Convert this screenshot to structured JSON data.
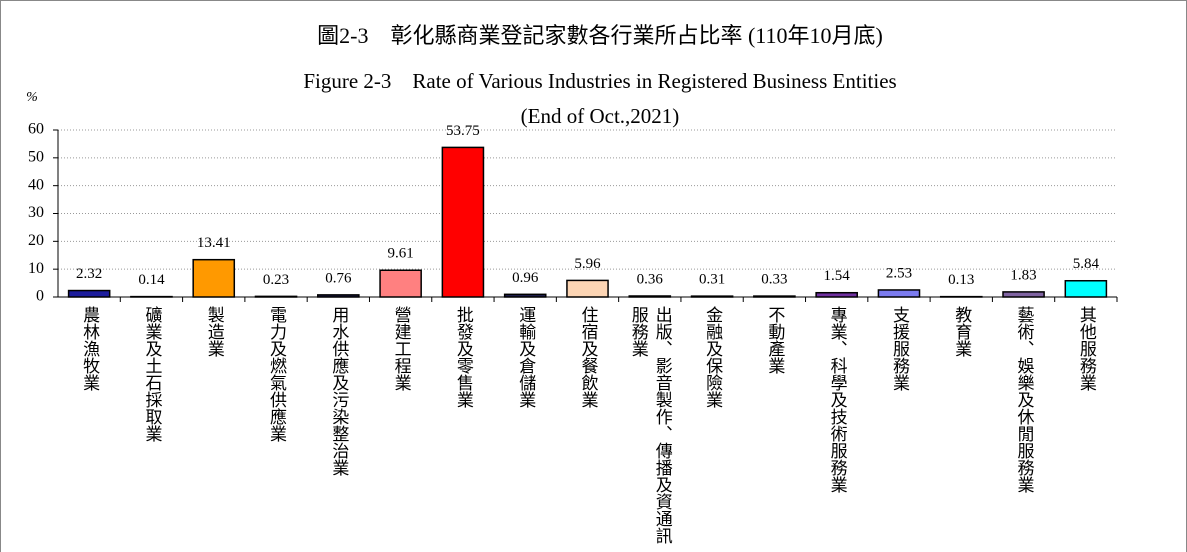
{
  "chart_data": {
    "type": "bar",
    "title": "圖2-3　彰化縣商業登記家數各行業所占比率 (110年10月底)",
    "subtitle": [
      "Figure 2-3　Rate of Various Industries in Registered Business Entities",
      "(End of Oct.,2021)"
    ],
    "y_label": "%",
    "categories": [
      "農林漁牧業",
      "礦業及土石採取業",
      "製造業",
      "電力及燃氣供應業",
      "用水供應及污染整治業",
      "營建工程業",
      "批發及零售業",
      "運輸及倉儲業",
      "住宿及餐飲業",
      "出版、影音製作、傳播及資通訊服務業",
      "金融及保險業",
      "不動產業",
      "專業、科學及技術服務業",
      "支援服務業",
      "教育業",
      "藝術、娛樂及休閒服務業",
      "其他服務業"
    ],
    "values": [
      2.32,
      0.14,
      13.41,
      0.23,
      0.76,
      9.61,
      53.75,
      0.96,
      5.96,
      0.36,
      0.31,
      0.33,
      1.54,
      2.53,
      0.13,
      1.83,
      5.84
    ],
    "colors": [
      "#1c1c9c",
      "#1f1f4f",
      "#ff9900",
      "#1f1f4f",
      "#1f1f4f",
      "#ff8080",
      "#ff0000",
      "#1f1f4f",
      "#fcd5b4",
      "#1f1f4f",
      "#1f1f4f",
      "#1f1f4f",
      "#7030a0",
      "#7b7bef",
      "#1f1f4f",
      "#8064a2",
      "#00ffff"
    ],
    "ylim": [
      0,
      60
    ],
    "yticks": [
      0,
      10,
      20,
      30,
      40,
      50,
      60
    ],
    "grid": true
  }
}
